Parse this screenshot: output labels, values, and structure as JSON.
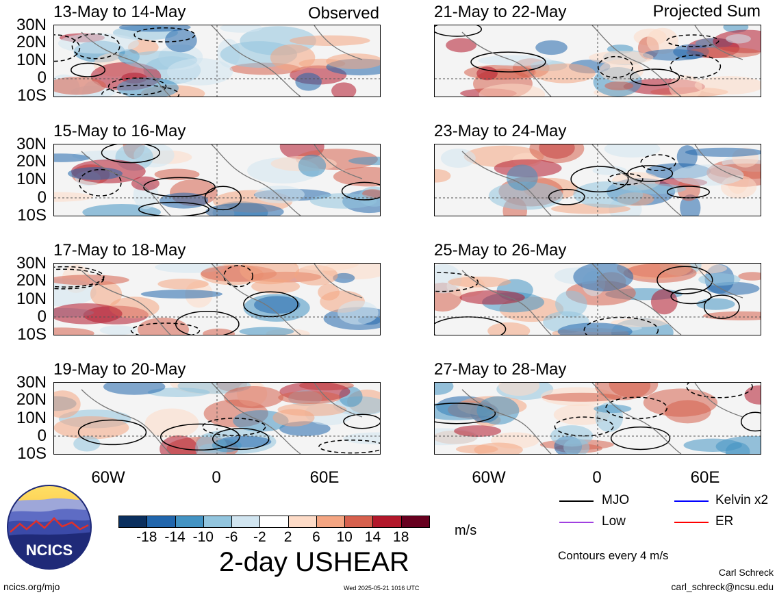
{
  "observed_label": "Observed",
  "projected_label": "Projected Sum",
  "panels_left": [
    {
      "title": "13-May to 14-May"
    },
    {
      "title": "15-May to 16-May"
    },
    {
      "title": "17-May to 18-May"
    },
    {
      "title": "19-May to 20-May"
    }
  ],
  "panels_right": [
    {
      "title": "21-May to 22-May"
    },
    {
      "title": "23-May to 24-May"
    },
    {
      "title": "25-May to 26-May"
    },
    {
      "title": "27-May to 28-May"
    }
  ],
  "lat_labels": [
    "30N",
    "20N",
    "10N",
    "0",
    "10S"
  ],
  "lon_labels": [
    "60W",
    "0",
    "60E"
  ],
  "colorbar": {
    "colors": [
      "#0a2f5e",
      "#2166ac",
      "#4393c3",
      "#92c5de",
      "#d1e5f0",
      "#ffffff",
      "#fddbc7",
      "#f4a582",
      "#d6604d",
      "#b2182b",
      "#67001f"
    ],
    "labels": [
      "-18",
      "-14",
      "-10",
      "-6",
      "-2",
      "2",
      "6",
      "10",
      "14",
      "18"
    ],
    "units": "m/s"
  },
  "variable_title": "2-day USHEAR",
  "legend": [
    {
      "name": "MJO",
      "color": "#000000"
    },
    {
      "name": "Kelvin x2",
      "color": "#0000ff"
    },
    {
      "name": "Low",
      "color": "#a040e0"
    },
    {
      "name": "ER",
      "color": "#ff0000"
    }
  ],
  "contour_note": "Contours every 4 m/s",
  "logo_text": "NCICS",
  "url": "ncics.org/mjo",
  "timestamp": "Wed 2025-05-21 1016 UTC",
  "author": "Carl Schreck",
  "email": "carl_schreck@ncsu.edu"
}
